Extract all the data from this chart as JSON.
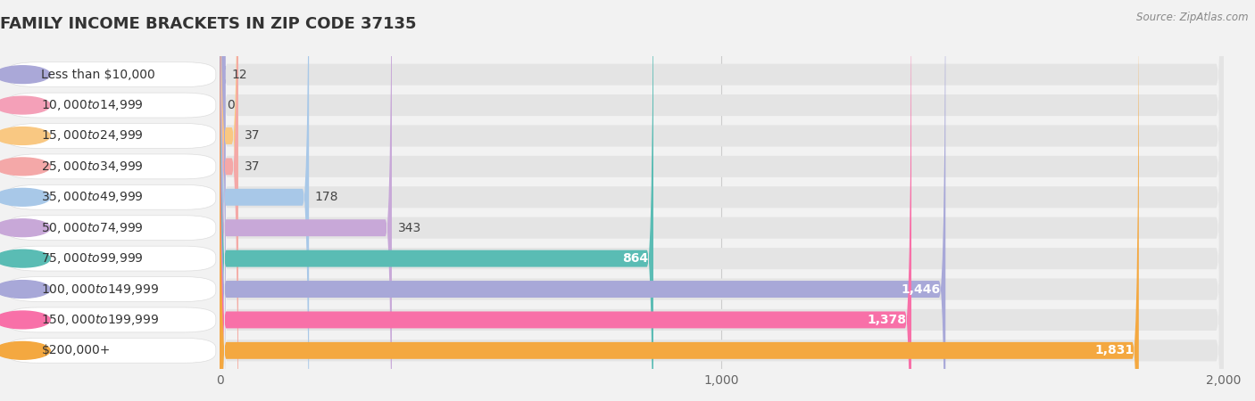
{
  "title": "FAMILY INCOME BRACKETS IN ZIP CODE 37135",
  "source": "Source: ZipAtlas.com",
  "categories": [
    "Less than $10,000",
    "$10,000 to $14,999",
    "$15,000 to $24,999",
    "$25,000 to $34,999",
    "$35,000 to $49,999",
    "$50,000 to $74,999",
    "$75,000 to $99,999",
    "$100,000 to $149,999",
    "$150,000 to $199,999",
    "$200,000+"
  ],
  "values": [
    12,
    0,
    37,
    37,
    178,
    343,
    864,
    1446,
    1378,
    1831
  ],
  "bar_colors": [
    "#aaa8d8",
    "#f4a0b8",
    "#f9c882",
    "#f4a8a8",
    "#a8c8e8",
    "#c8a8d8",
    "#5abcb4",
    "#a8a8d8",
    "#f870a8",
    "#f4a840"
  ],
  "background_color": "#f2f2f2",
  "bar_bg_color": "#e4e4e4",
  "xlim": [
    0,
    2000
  ],
  "xticks": [
    0,
    1000,
    2000
  ],
  "title_fontsize": 13,
  "label_fontsize": 10,
  "value_fontsize": 10,
  "white_label_threshold": 500
}
